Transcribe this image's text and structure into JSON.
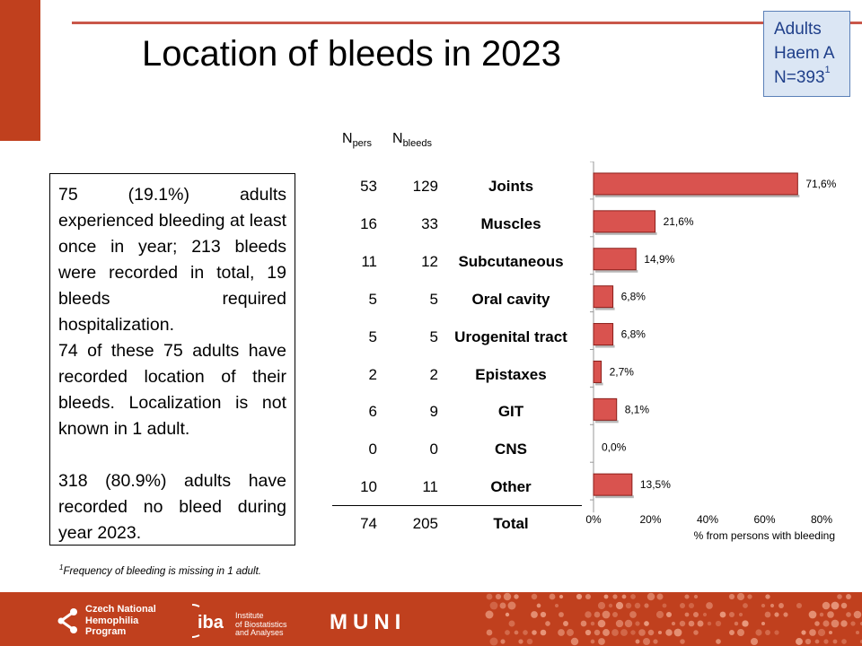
{
  "title": "Location of bleeds in 2023",
  "badge": {
    "line1": "Adults",
    "line2": "Haem A",
    "line3": "N=393",
    "line3_sup": "1"
  },
  "summary": {
    "paragraph1": "75 (19.1%) adults experienced bleeding at least once in year; 213 bleeds were recorded in total, 19 bleeds required hospitalization.",
    "paragraph2": "74 of these 75 adults have recorded location of their bleeds. Localization is not known in 1 adult.",
    "paragraph3": "318 (80.9%) adults have recorded no bleed during year 2023."
  },
  "footnote": {
    "sup": "1",
    "text": "Frequency of bleeding is missing in 1 adult."
  },
  "table": {
    "col_pers_main": "N",
    "col_pers_sub": "pers",
    "col_bleeds_main": "N",
    "col_bleeds_sub": "bleeds",
    "rows": [
      {
        "n_pers": "53",
        "n_bleeds": "129",
        "location": "Joints"
      },
      {
        "n_pers": "16",
        "n_bleeds": "33",
        "location": "Muscles"
      },
      {
        "n_pers": "11",
        "n_bleeds": "12",
        "location": "Subcutaneous"
      },
      {
        "n_pers": "5",
        "n_bleeds": "5",
        "location": "Oral cavity"
      },
      {
        "n_pers": "5",
        "n_bleeds": "5",
        "location": "Urogenital tract"
      },
      {
        "n_pers": "2",
        "n_bleeds": "2",
        "location": "Epistaxes"
      },
      {
        "n_pers": "6",
        "n_bleeds": "9",
        "location": "GIT"
      },
      {
        "n_pers": "0",
        "n_bleeds": "0",
        "location": "CNS"
      },
      {
        "n_pers": "10",
        "n_bleeds": "11",
        "location": "Other"
      }
    ],
    "total": {
      "n_pers": "74",
      "n_bleeds": "205",
      "location": "Total"
    }
  },
  "chart_data": {
    "type": "bar",
    "orientation": "horizontal",
    "categories": [
      "Joints",
      "Muscles",
      "Subcutaneous",
      "Oral cavity",
      "Urogenital tract",
      "Epistaxes",
      "GIT",
      "CNS",
      "Other"
    ],
    "values": [
      71.6,
      21.6,
      14.9,
      6.8,
      6.8,
      2.7,
      8.1,
      0.0,
      13.5
    ],
    "data_labels": [
      "71,6%",
      "21,6%",
      "14,9%",
      "6,8%",
      "6,8%",
      "2,7%",
      "8,1%",
      "0,0%",
      "13,5%"
    ],
    "xlim": [
      0,
      80
    ],
    "xticks": [
      "0%",
      "20%",
      "40%",
      "60%",
      "80%"
    ],
    "xlabel": "% from persons with bleeding",
    "bar_color": "#d9534f",
    "grid": false
  },
  "footer": {
    "logo1_line1": "Czech National",
    "logo1_line2": "Hemophilia",
    "logo1_line3": "Program",
    "logo2_mark": "iba",
    "logo2_line1": "Institute",
    "logo2_line2": "of Biostatistics",
    "logo2_line3": "and Analyses",
    "logo3": "MUNI"
  },
  "colors": {
    "accent": "#c0401e",
    "badge_bg": "#dbe6f4",
    "badge_text": "#1f3f8a"
  }
}
